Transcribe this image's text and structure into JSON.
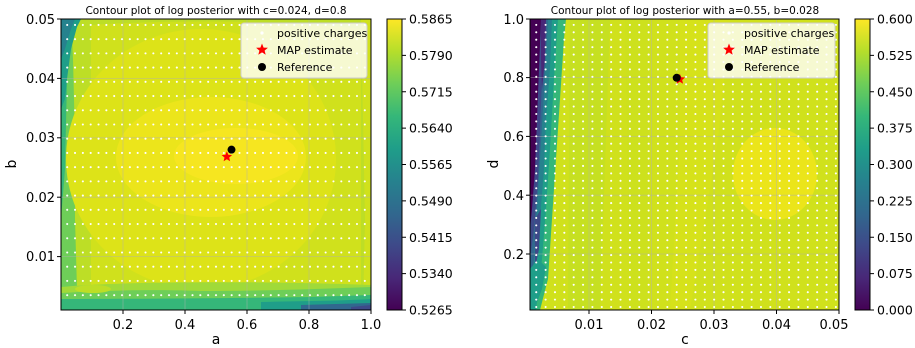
{
  "colors": {
    "cmap": [
      "#440154",
      "#482878",
      "#3e4989",
      "#31688e",
      "#26828e",
      "#1f9e89",
      "#35b779",
      "#6ece58",
      "#b5de2b",
      "#fde725"
    ],
    "map_marker": "#ff0000",
    "reference_marker": "#000000",
    "charge_dots": "#ffffff"
  },
  "chart_data": [
    {
      "type": "heatmap",
      "subtype": "filled-contour",
      "title": "Contour plot of log posterior with c=0.024, d=0.8",
      "xlabel": "a",
      "ylabel": "b",
      "xlim": [
        0.0,
        1.0
      ],
      "ylim": [
        0.001,
        0.05
      ],
      "x_ticks": [
        0.2,
        0.4,
        0.6,
        0.8,
        1.0
      ],
      "x_tick_labels": [
        "0.2",
        "0.4",
        "0.6",
        "0.8",
        "1.0"
      ],
      "y_ticks": [
        0.01,
        0.02,
        0.03,
        0.04,
        0.05
      ],
      "y_tick_labels": [
        "0.01",
        "0.02",
        "0.03",
        "0.04",
        "0.05"
      ],
      "grid": true,
      "legend_placement": "top-right",
      "legend": [
        "positive charges",
        "MAP estimate",
        "Reference"
      ],
      "colorbar": {
        "min": 0.5265,
        "max": 0.5865,
        "ticks": [
          0.5265,
          0.534,
          0.5415,
          0.549,
          0.5565,
          0.564,
          0.5715,
          0.579,
          0.5865
        ],
        "tick_labels": [
          "0.5265",
          "0.5340",
          "0.5415",
          "0.5490",
          "0.5565",
          "0.5640",
          "0.5715",
          "0.5790",
          "0.5865"
        ]
      },
      "map_estimate": {
        "x": 0.535,
        "y": 0.0268
      },
      "reference": {
        "x": 0.55,
        "y": 0.028
      },
      "charge_grid": {
        "x_start": 0.02,
        "x_end": 0.98,
        "x_count": 39,
        "y_start": 0.0035,
        "y_end": 0.049,
        "y_count": 20
      }
    },
    {
      "type": "heatmap",
      "subtype": "filled-contour",
      "title": "Contour plot of log posterior with a=0.55, b=0.028",
      "xlabel": "c",
      "ylabel": "d",
      "xlim": [
        0.0005,
        0.05
      ],
      "ylim": [
        0.01,
        1.0
      ],
      "x_ticks": [
        0.01,
        0.02,
        0.03,
        0.04,
        0.05
      ],
      "x_tick_labels": [
        "0.01",
        "0.02",
        "0.03",
        "0.04",
        "0.05"
      ],
      "y_ticks": [
        0.2,
        0.4,
        0.6,
        0.8,
        1.0
      ],
      "y_tick_labels": [
        "0.2",
        "0.4",
        "0.6",
        "0.8",
        "1.0"
      ],
      "grid": true,
      "legend_placement": "top-right",
      "legend": [
        "positive charges",
        "MAP estimate",
        "Reference"
      ],
      "colorbar": {
        "min": 0.0,
        "max": 0.6,
        "ticks": [
          0.0,
          0.075,
          0.15,
          0.225,
          0.3,
          0.375,
          0.45,
          0.525,
          0.6
        ],
        "tick_labels": [
          "0.000",
          "0.075",
          "0.150",
          "0.225",
          "0.300",
          "0.375",
          "0.450",
          "0.525",
          "0.600"
        ]
      },
      "map_estimate": {
        "x": 0.0245,
        "y": 0.795
      },
      "reference": {
        "x": 0.024,
        "y": 0.8
      },
      "charge_grid": {
        "x_start": 0.0015,
        "x_end": 0.0495,
        "x_count": 33,
        "y_start": 0.02,
        "y_end": 0.98,
        "y_count": 39
      }
    }
  ]
}
